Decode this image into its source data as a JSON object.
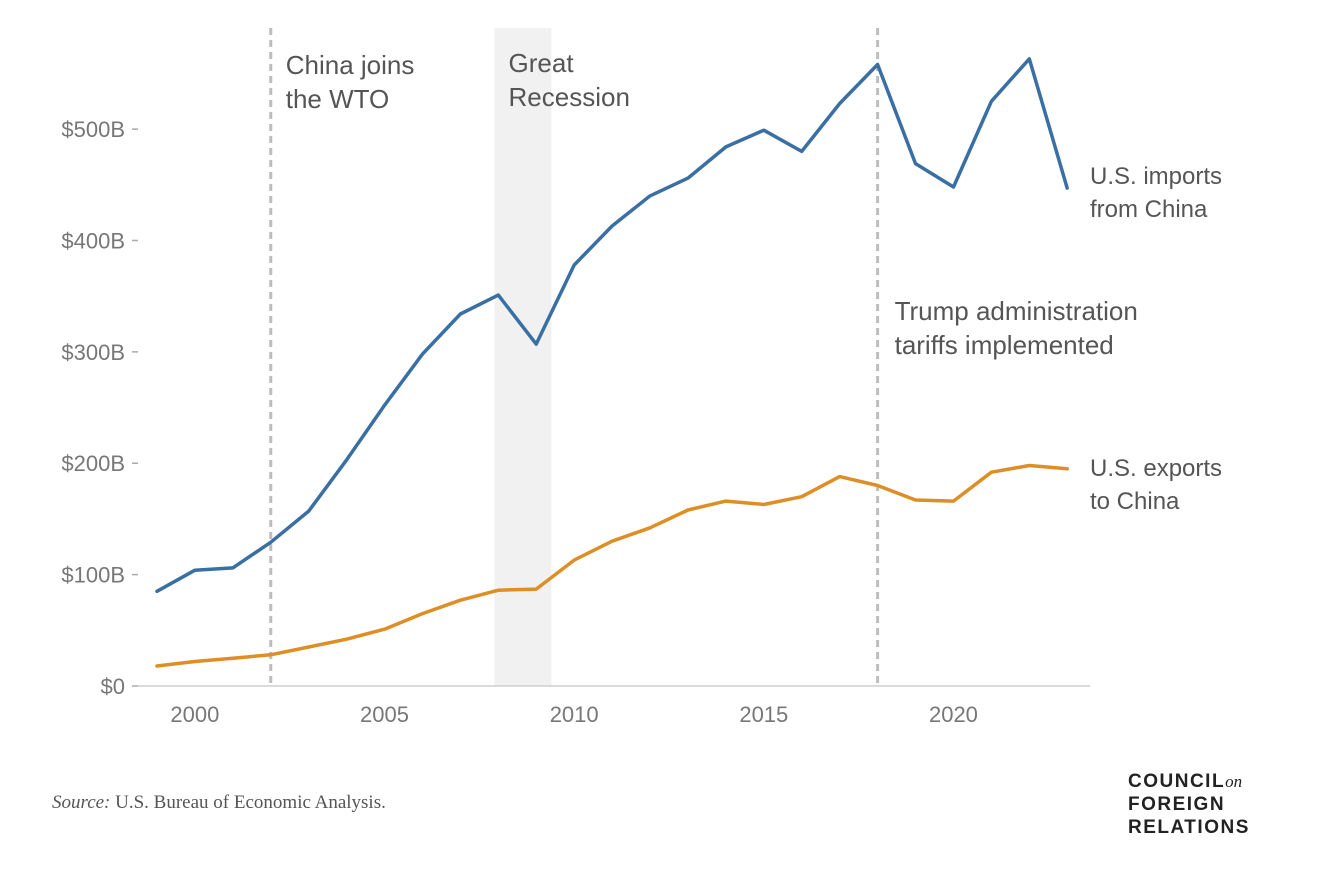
{
  "chart_data": {
    "type": "line",
    "x": [
      1999,
      2000,
      2001,
      2002,
      2003,
      2004,
      2005,
      2006,
      2007,
      2008,
      2009,
      2010,
      2011,
      2012,
      2013,
      2014,
      2015,
      2016,
      2017,
      2018,
      2019,
      2020,
      2021,
      2022,
      2023
    ],
    "series": [
      {
        "name": "U.S. imports from China",
        "label_lines": [
          "U.S. imports",
          "from China"
        ],
        "color": "#3a6fa4",
        "values": [
          85,
          104,
          106,
          129,
          157,
          203,
          252,
          298,
          334,
          351,
          307,
          378,
          413,
          440,
          456,
          484,
          499,
          480,
          523,
          558,
          469,
          448,
          525,
          563,
          447
        ]
      },
      {
        "name": "U.S. exports to China",
        "label_lines": [
          "U.S. exports",
          "to China"
        ],
        "color": "#dd8e25",
        "values": [
          18,
          22,
          25,
          28,
          35,
          42,
          51,
          65,
          77,
          86,
          87,
          113,
          130,
          142,
          158,
          166,
          163,
          170,
          188,
          180,
          167,
          166,
          192,
          198,
          195
        ]
      }
    ],
    "y_ticks": [
      {
        "value": 0,
        "label": "$0"
      },
      {
        "value": 100,
        "label": "$100B"
      },
      {
        "value": 200,
        "label": "$200B"
      },
      {
        "value": 300,
        "label": "$300B"
      },
      {
        "value": 400,
        "label": "$400B"
      },
      {
        "value": 500,
        "label": "$500B"
      }
    ],
    "x_ticks": [
      2000,
      2005,
      2010,
      2015,
      2020
    ],
    "xlim": [
      1998.5,
      2023.6
    ],
    "ylim": [
      0,
      580
    ],
    "annotations": [
      {
        "type": "vline",
        "x": 2002,
        "lines": [
          "China joins",
          "the WTO"
        ]
      },
      {
        "type": "band",
        "x0": 2007.9,
        "x1": 2009.4,
        "lines": [
          "Great",
          "Recession"
        ]
      },
      {
        "type": "vline",
        "x": 2018,
        "lines": [
          "Trump administration",
          "tariffs implemented"
        ]
      }
    ]
  },
  "source": {
    "prefix": "Source:",
    "text": " U.S. Bureau of Economic Analysis."
  },
  "logo": {
    "line1": "COUNCIL",
    "on": "on",
    "line2": "FOREIGN",
    "line3": "RELATIONS"
  }
}
